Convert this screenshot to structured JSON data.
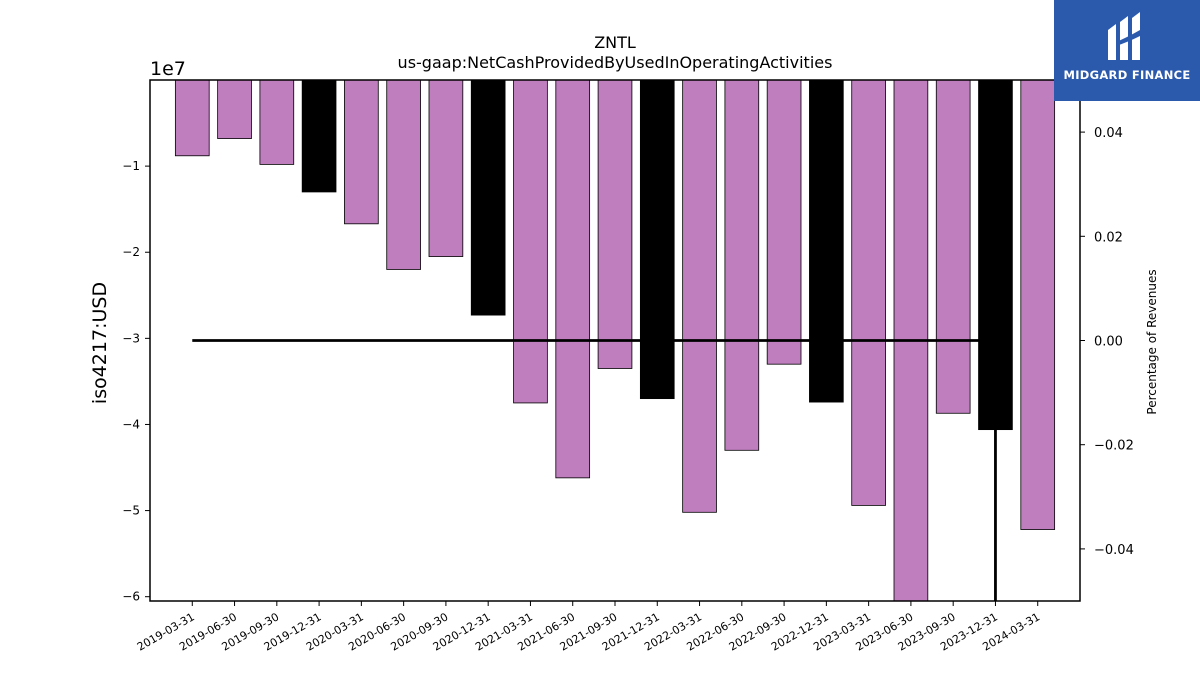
{
  "logo": {
    "text": "MIDGARD FINANCE"
  },
  "chart_data": {
    "type": "bar",
    "title": "ZNTL",
    "subtitle": "us-gaap:NetCashProvidedByUsedInOperatingActivities",
    "ylabel": "iso4217:USD",
    "y2label": "Percentage of Revenues",
    "y_offset_label": "1e7",
    "categories": [
      "2019-03-31",
      "2019-06-30",
      "2019-09-30",
      "2019-12-31",
      "2020-03-31",
      "2020-06-30",
      "2020-09-30",
      "2020-12-31",
      "2021-03-31",
      "2021-06-30",
      "2021-09-30",
      "2021-12-31",
      "2022-03-31",
      "2022-06-30",
      "2022-09-30",
      "2022-12-31",
      "2023-03-31",
      "2023-06-30",
      "2023-09-30",
      "2023-12-31",
      "2024-03-31"
    ],
    "values": [
      -8800000,
      -6800000,
      -9800000,
      -13000000,
      -16700000,
      -22000000,
      -20500000,
      -27300000,
      -37500000,
      -46200000,
      -33500000,
      -37000000,
      -50200000,
      -43000000,
      -33000000,
      -37400000,
      -49400000,
      -60800000,
      -38700000,
      -40600000,
      -52200000
    ],
    "bar_colors": [
      "#bf7fbf",
      "#bf7fbf",
      "#bf7fbf",
      "#000000",
      "#bf7fbf",
      "#bf7fbf",
      "#bf7fbf",
      "#000000",
      "#bf7fbf",
      "#bf7fbf",
      "#bf7fbf",
      "#000000",
      "#bf7fbf",
      "#bf7fbf",
      "#bf7fbf",
      "#000000",
      "#bf7fbf",
      "#bf7fbf",
      "#bf7fbf",
      "#000000",
      "#bf7fbf"
    ],
    "ylim": [
      -60500000,
      0
    ],
    "yticks": [
      -10000000,
      -20000000,
      -30000000,
      -40000000,
      -50000000,
      -60000000
    ],
    "ytick_labels": [
      "−1",
      "−2",
      "−3",
      "−4",
      "−5",
      "−6"
    ],
    "y2lim": [
      -0.05,
      0.05
    ],
    "y2ticks": [
      0.04,
      0.02,
      0.0,
      -0.02,
      -0.04
    ],
    "y2tick_labels": [
      "0.04",
      "0.02",
      "0.00",
      "−0.02",
      "−0.04"
    ],
    "ratio_line": {
      "color": "#000000",
      "points": [
        [
          "2019-03-31",
          0.0
        ],
        [
          "2023-09-30",
          0.0
        ],
        [
          "2023-12-31",
          0.0
        ],
        [
          "2023-12-31",
          -0.05
        ]
      ]
    },
    "grid": false,
    "legend": "none"
  }
}
